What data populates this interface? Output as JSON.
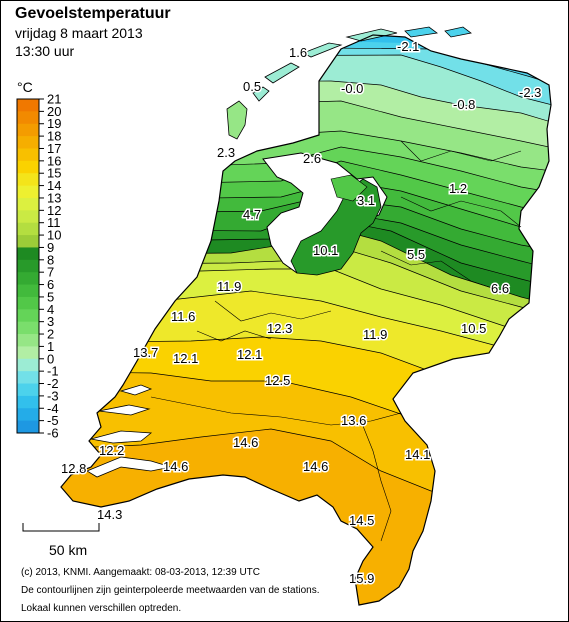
{
  "map": {
    "title": "Gevoelstemperatuur",
    "date_line": "vrijdag 8 maart 2013",
    "time_line": "13:30 uur",
    "unit_label": "°C",
    "scale_label": "50 km",
    "credits": [
      "(c) 2013, KNMI. Aangemaakt: 08-03-2013, 12:39 UTC",
      "De contourlijnen zijn geinterpoleerde meetwaarden van de stations.",
      "Lokaal kunnen verschillen optreden."
    ]
  },
  "legend": {
    "values": [
      "21",
      "20",
      "19",
      "18",
      "17",
      "16",
      "15",
      "14",
      "13",
      "12",
      "11",
      "10",
      "9",
      "8",
      "7",
      "6",
      "5",
      "4",
      "3",
      "2",
      "1",
      "0",
      "-1",
      "-2",
      "-3",
      "-4",
      "-5",
      "-6"
    ],
    "colors": [
      "#f07800",
      "#f28a00",
      "#f49c00",
      "#f6ae00",
      "#f8c000",
      "#fad200",
      "#f4e41a",
      "#eef030",
      "#dcf040",
      "#caea44",
      "#b4de40",
      "#9ccc38",
      "#1e8a22",
      "#289a2a",
      "#34aa32",
      "#42ba3c",
      "#52c848",
      "#64d458",
      "#7ade6c",
      "#96e686",
      "#b2eea4",
      "#9cecd4",
      "#72e0e8",
      "#4cd2ec",
      "#32c0ec",
      "#24ace8",
      "#1e98e2"
    ]
  },
  "stations": [
    {
      "label": "1.6"
    },
    {
      "label": "-2.1"
    },
    {
      "label": "0.5"
    },
    {
      "label": "-0.0"
    },
    {
      "label": "-0.8"
    },
    {
      "label": "-2.3"
    },
    {
      "label": "2.3"
    },
    {
      "label": "2.6"
    },
    {
      "label": "1.2"
    },
    {
      "label": "3.1"
    },
    {
      "label": "4.7"
    },
    {
      "label": "10.1"
    },
    {
      "label": "5.5"
    },
    {
      "label": "6.6"
    },
    {
      "label": "11.9"
    },
    {
      "label": "11.6"
    },
    {
      "label": "12.3"
    },
    {
      "label": "11.9"
    },
    {
      "label": "10.5"
    },
    {
      "label": "13.7"
    },
    {
      "label": "12.1"
    },
    {
      "label": "12.1"
    },
    {
      "label": "12.5"
    },
    {
      "label": "13.6"
    },
    {
      "label": "12.2"
    },
    {
      "label": "14.6"
    },
    {
      "label": "14.6"
    },
    {
      "label": "14.1"
    },
    {
      "label": "12.8"
    },
    {
      "label": "14.6"
    },
    {
      "label": "14.5"
    },
    {
      "label": "14.3"
    },
    {
      "label": "15.9"
    }
  ],
  "colors": {
    "sea": "#ffffff",
    "border": "#000000",
    "ijsselmeer": "#ffffff"
  }
}
